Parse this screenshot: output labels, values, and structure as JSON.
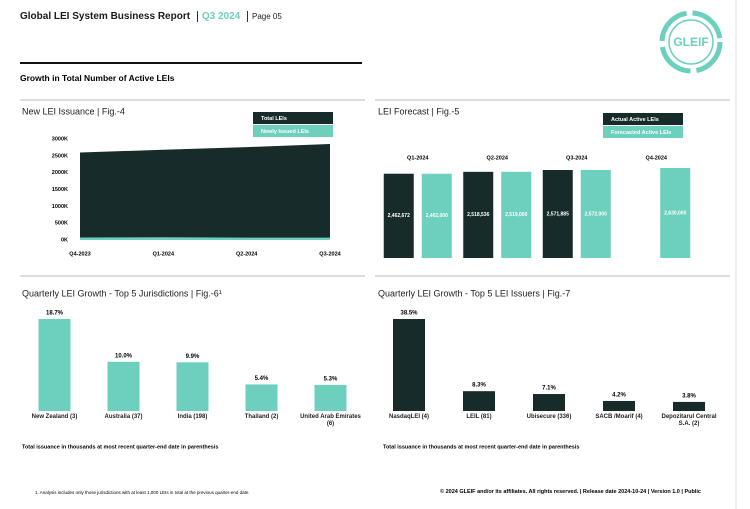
{
  "header": {
    "title": "Global LEI System Business Report",
    "quarter": "Q3 2024",
    "page": "Page 05",
    "logo": "GLEIF"
  },
  "section_title": "Growth in Total Number of Active LEIs",
  "chart_data": [
    {
      "type": "area",
      "title": "New LEI Issuance | Fig.-4",
      "categories": [
        "Q4-2023",
        "Q1-2024",
        "Q2-2024",
        "Q3-2024"
      ],
      "series": [
        {
          "name": "Total LEIs",
          "color": "#162b2a",
          "values": [
            2600000,
            2680000,
            2760000,
            2850000
          ]
        },
        {
          "name": "Newly Issued LEIs",
          "color": "#6dcfbd",
          "values": [
            75000,
            80000,
            70000,
            70000
          ]
        }
      ],
      "ylim": [
        0,
        3000000
      ],
      "yticks": [
        {
          "value": 0,
          "label": "0K"
        },
        {
          "value": 500000,
          "label": "500K"
        },
        {
          "value": 1000000,
          "label": "1000K"
        },
        {
          "value": 1500000,
          "label": "1500K"
        },
        {
          "value": 2000000,
          "label": "2000K"
        },
        {
          "value": 2500000,
          "label": "2500K"
        },
        {
          "value": 3000000,
          "label": "3000K"
        }
      ]
    },
    {
      "type": "bar",
      "title": "LEI Forecast | Fig.-5",
      "categories": [
        "Q1-2024",
        "Q2-2024",
        "Q3-2024",
        "Q4-2024"
      ],
      "series": [
        {
          "name": "Actual Active LEIs",
          "color": "#162b2a",
          "values": [
            2462672,
            2518536,
            2571885,
            null
          ],
          "value_labels": [
            "2,462,672",
            "2,518,536",
            "2,571,885",
            null
          ]
        },
        {
          "name": "Forecasted Active LEIs",
          "color": "#6dcfbd",
          "values": [
            2462000,
            2519000,
            2572000,
            2630000
          ],
          "value_labels": [
            "2,462,000",
            "2,519,000",
            "2,572,000",
            "2,630,000"
          ]
        }
      ]
    },
    {
      "type": "bar",
      "title": "Quarterly LEI Growth - Top 5 Jurisdictions | Fig.-6¹",
      "categories": [
        "New Zealand (3)",
        "Australia (37)",
        "India (198)",
        "Thailand (2)",
        "United Arab Emirates (6)"
      ],
      "values": [
        18.7,
        10.0,
        9.9,
        5.4,
        5.3
      ],
      "value_labels": [
        "18.7%",
        "10.0%",
        "9.9%",
        "5.4%",
        "5.3%"
      ],
      "color": "#6dcfbd",
      "note": "Total issuance in thousands at most recent quarter-end date in parenthesis"
    },
    {
      "type": "bar",
      "title": "Quarterly LEI Growth - Top 5 LEI Issuers | Fig.-7",
      "categories": [
        "NasdaqLEI (4)",
        "LEIL (81)",
        "Ubisecure (336)",
        "SACB /Moarif (4)",
        "Depozitarul Central S.A. (2)"
      ],
      "values": [
        38.5,
        8.3,
        7.1,
        4.2,
        3.8
      ],
      "value_labels": [
        "38.5%",
        "8.3%",
        "7.1%",
        "4.2%",
        "3.8%"
      ],
      "color": "#162b2a",
      "note": "Total issuance in thousands at most recent quarter-end date in parenthesis"
    }
  ],
  "footnote": "1. Analysis includes only those jurisdictions with at least 1,000 LEIs in total at the previous quarter-end date.",
  "footer": "© 2024 GLEIF and/or its affiliates. All rights reserved. | Release date 2024-10-24 | Version 1.0 | Public"
}
